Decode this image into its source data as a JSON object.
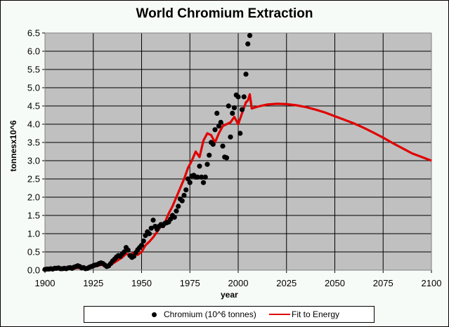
{
  "chart_data": {
    "type": "scatter",
    "title": "World Chromium Extraction",
    "xlabel": "year",
    "ylabel": "tonnesx10^6",
    "xlim": [
      1900,
      2100
    ],
    "ylim": [
      0,
      6.5
    ],
    "grid": true,
    "legend_position": "bottom",
    "xticks": [
      "1900",
      "1925",
      "1950",
      "1975",
      "2000",
      "2025",
      "2050",
      "2075",
      "2100"
    ],
    "yticks": [
      "0.0",
      "0.5",
      "1.0",
      "1.5",
      "2.0",
      "2.5",
      "3.0",
      "3.5",
      "4.0",
      "4.5",
      "5.0",
      "5.5",
      "6.0",
      "6.5"
    ],
    "series": [
      {
        "name": "Chromium (10^6 tonnes)",
        "kind": "scatter",
        "color": "#000000",
        "x": [
          1900,
          1901,
          1902,
          1903,
          1904,
          1905,
          1906,
          1907,
          1908,
          1909,
          1910,
          1911,
          1912,
          1913,
          1914,
          1915,
          1916,
          1917,
          1918,
          1919,
          1920,
          1921,
          1922,
          1923,
          1924,
          1925,
          1926,
          1927,
          1928,
          1929,
          1930,
          1931,
          1932,
          1933,
          1934,
          1935,
          1936,
          1937,
          1938,
          1939,
          1940,
          1941,
          1942,
          1943,
          1944,
          1945,
          1946,
          1947,
          1948,
          1949,
          1950,
          1951,
          1952,
          1953,
          1954,
          1955,
          1956,
          1957,
          1958,
          1959,
          1960,
          1961,
          1962,
          1963,
          1964,
          1965,
          1966,
          1967,
          1968,
          1969,
          1970,
          1971,
          1972,
          1973,
          1974,
          1975,
          1976,
          1977,
          1978,
          1979,
          1980,
          1981,
          1982,
          1983,
          1984,
          1985,
          1986,
          1987,
          1988,
          1989,
          1990,
          1991,
          1992,
          1993,
          1994,
          1995,
          1996,
          1997,
          1998,
          1999,
          2000,
          2001,
          2002,
          2003,
          2004,
          2005,
          2006
        ],
        "y": [
          0.02,
          0.03,
          0.03,
          0.04,
          0.03,
          0.05,
          0.05,
          0.06,
          0.04,
          0.04,
          0.05,
          0.04,
          0.06,
          0.07,
          0.05,
          0.08,
          0.1,
          0.12,
          0.1,
          0.06,
          0.07,
          0.04,
          0.05,
          0.08,
          0.1,
          0.12,
          0.14,
          0.15,
          0.18,
          0.2,
          0.18,
          0.14,
          0.1,
          0.12,
          0.18,
          0.25,
          0.3,
          0.36,
          0.4,
          0.38,
          0.45,
          0.5,
          0.62,
          0.55,
          0.4,
          0.35,
          0.38,
          0.48,
          0.56,
          0.62,
          0.68,
          0.8,
          0.95,
          1.05,
          1.0,
          1.15,
          1.37,
          1.2,
          1.12,
          1.2,
          1.25,
          1.22,
          1.28,
          1.3,
          1.32,
          1.4,
          1.5,
          1.45,
          1.62,
          1.75,
          1.95,
          1.9,
          2.05,
          2.2,
          2.5,
          2.4,
          2.58,
          2.6,
          2.55,
          2.55,
          2.85,
          2.55,
          2.4,
          2.55,
          2.9,
          3.15,
          3.5,
          3.45,
          3.85,
          4.3,
          3.95,
          4.05,
          3.4,
          3.1,
          3.08,
          4.5,
          3.65,
          4.3,
          4.45,
          4.8,
          4.75,
          3.75,
          4.4,
          4.75,
          5.37,
          6.2,
          6.43
        ]
      },
      {
        "name": "Fit to Energy",
        "kind": "line",
        "color": "#e00000",
        "x": [
          1900,
          1910,
          1920,
          1925,
          1930,
          1933,
          1935,
          1938,
          1940,
          1942,
          1944,
          1946,
          1948,
          1950,
          1952,
          1954,
          1956,
          1958,
          1960,
          1962,
          1964,
          1966,
          1968,
          1970,
          1972,
          1974,
          1976,
          1978,
          1980,
          1982,
          1984,
          1986,
          1988,
          1990,
          1992,
          1994,
          1996,
          1998,
          2000,
          2002,
          2004,
          2005,
          2006,
          2007,
          2010,
          2015,
          2020,
          2025,
          2030,
          2035,
          2040,
          2045,
          2050,
          2055,
          2060,
          2065,
          2070,
          2075,
          2080,
          2085,
          2090,
          2095,
          2100
        ],
        "y": [
          0.02,
          0.04,
          0.07,
          0.1,
          0.15,
          0.14,
          0.18,
          0.28,
          0.35,
          0.45,
          0.42,
          0.48,
          0.42,
          0.5,
          0.68,
          0.78,
          0.9,
          1.05,
          1.2,
          1.3,
          1.55,
          1.75,
          2.0,
          2.25,
          2.5,
          2.8,
          3.0,
          3.25,
          3.1,
          3.55,
          3.75,
          3.7,
          3.5,
          3.75,
          3.95,
          4.0,
          4.05,
          4.2,
          4.0,
          4.3,
          4.6,
          4.65,
          4.82,
          4.43,
          4.48,
          4.54,
          4.56,
          4.55,
          4.52,
          4.47,
          4.4,
          4.32,
          4.22,
          4.12,
          4.02,
          3.9,
          3.77,
          3.63,
          3.48,
          3.34,
          3.2,
          3.1,
          3.0
        ]
      }
    ]
  },
  "legend": {
    "scatter_label": "Chromium (10^6 tonnes)",
    "line_label": "Fit to Energy"
  }
}
